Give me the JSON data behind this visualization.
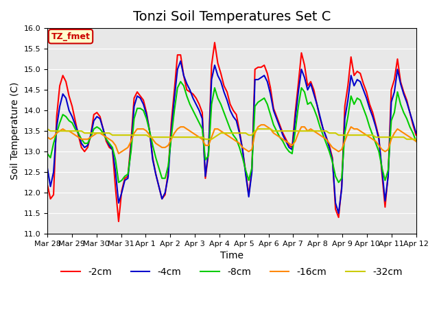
{
  "title": "Tonzi Soil Temperatures Set C",
  "xlabel": "Time",
  "ylabel": "Soil Temperature (C)",
  "ylim": [
    11.0,
    16.0
  ],
  "yticks": [
    11.0,
    11.5,
    12.0,
    12.5,
    13.0,
    13.5,
    14.0,
    14.5,
    15.0,
    15.5,
    16.0
  ],
  "xtick_labels": [
    "Mar 28",
    "Mar 29",
    "Mar 30",
    "Mar 31",
    "Apr 1",
    "Apr 2",
    "Apr 3",
    "Apr 4",
    "Apr 5",
    "Apr 6",
    "Apr 7",
    "Apr 8",
    "Apr 9",
    "Apr 10",
    "Apr 11",
    "Apr 12"
  ],
  "annotation_label": "TZ_fmet",
  "annotation_color": "#cc0000",
  "annotation_bg": "#ffffcc",
  "legend_entries": [
    "-2cm",
    "-4cm",
    "-8cm",
    "-16cm",
    "-32cm"
  ],
  "line_colors": [
    "#ff0000",
    "#0000cc",
    "#00cc00",
    "#ff8800",
    "#cccc00"
  ],
  "line_widths": [
    1.5,
    1.5,
    1.5,
    1.5,
    1.5
  ],
  "bg_color": "#e8e8e8",
  "title_fontsize": 14,
  "axis_fontsize": 10,
  "tick_fontsize": 8,
  "series_2cm": [
    12.2,
    11.85,
    11.95,
    13.85,
    14.6,
    14.85,
    14.7,
    14.35,
    14.1,
    13.75,
    13.4,
    13.1,
    13.0,
    13.1,
    13.4,
    13.9,
    13.95,
    13.85,
    13.55,
    13.25,
    13.1,
    13.05,
    12.1,
    11.3,
    12.05,
    12.35,
    12.4,
    13.25,
    14.3,
    14.45,
    14.35,
    14.25,
    13.95,
    13.5,
    12.85,
    12.45,
    12.15,
    11.85,
    11.95,
    12.5,
    13.7,
    14.5,
    15.35,
    15.35,
    14.85,
    14.5,
    14.45,
    14.4,
    14.3,
    14.15,
    13.95,
    12.35,
    12.95,
    15.1,
    15.65,
    15.15,
    14.9,
    14.6,
    14.45,
    14.15,
    14.0,
    13.9,
    13.5,
    13.05,
    12.5,
    11.95,
    12.55,
    15.0,
    15.05,
    15.05,
    15.1,
    14.9,
    14.55,
    14.05,
    13.85,
    13.65,
    13.45,
    13.3,
    13.15,
    13.1,
    13.95,
    14.65,
    15.4,
    15.1,
    14.6,
    14.7,
    14.5,
    14.15,
    13.8,
    13.55,
    13.35,
    13.15,
    12.85,
    11.6,
    11.4,
    12.15,
    14.1,
    14.6,
    15.3,
    14.85,
    14.95,
    14.9,
    14.65,
    14.45,
    14.15,
    13.95,
    13.65,
    13.35,
    12.45,
    11.65,
    12.45,
    14.5,
    14.75,
    15.25,
    14.7,
    14.45,
    14.25,
    13.95,
    13.65,
    13.4,
    13.15
  ],
  "series_4cm": [
    12.6,
    12.15,
    12.5,
    13.6,
    14.1,
    14.4,
    14.3,
    14.0,
    13.85,
    13.65,
    13.45,
    13.2,
    13.1,
    13.15,
    13.4,
    13.75,
    13.85,
    13.8,
    13.55,
    13.3,
    13.15,
    13.05,
    12.5,
    11.75,
    12.0,
    12.3,
    12.35,
    13.1,
    14.1,
    14.35,
    14.3,
    14.15,
    13.9,
    13.5,
    12.8,
    12.45,
    12.15,
    11.85,
    12.0,
    12.4,
    13.5,
    14.3,
    15.0,
    15.2,
    14.85,
    14.65,
    14.5,
    14.3,
    14.15,
    14.0,
    13.8,
    12.4,
    13.0,
    14.75,
    15.1,
    14.85,
    14.7,
    14.45,
    14.25,
    14.0,
    13.85,
    13.75,
    13.45,
    13.05,
    12.45,
    11.9,
    12.5,
    14.75,
    14.75,
    14.8,
    14.85,
    14.7,
    14.4,
    14.0,
    13.8,
    13.6,
    13.4,
    13.25,
    13.1,
    13.05,
    13.8,
    14.45,
    15.0,
    14.8,
    14.5,
    14.65,
    14.4,
    14.15,
    13.85,
    13.55,
    13.35,
    13.1,
    12.8,
    11.75,
    11.5,
    12.1,
    13.8,
    14.25,
    14.85,
    14.6,
    14.75,
    14.7,
    14.5,
    14.3,
    14.05,
    13.85,
    13.6,
    13.3,
    12.55,
    11.8,
    12.4,
    14.2,
    14.45,
    15.0,
    14.65,
    14.4,
    14.2,
    13.95,
    13.7,
    13.45,
    13.2
  ],
  "series_8cm": [
    12.95,
    12.85,
    13.2,
    13.45,
    13.7,
    13.9,
    13.85,
    13.75,
    13.7,
    13.55,
    13.45,
    13.3,
    13.2,
    13.2,
    13.35,
    13.55,
    13.6,
    13.55,
    13.45,
    13.3,
    13.2,
    13.1,
    12.8,
    12.25,
    12.3,
    12.4,
    12.45,
    13.0,
    13.8,
    14.05,
    14.05,
    14.0,
    13.8,
    13.5,
    13.15,
    12.85,
    12.6,
    12.35,
    12.35,
    12.65,
    13.35,
    14.0,
    14.55,
    14.7,
    14.6,
    14.35,
    14.15,
    14.0,
    13.85,
    13.7,
    13.55,
    12.8,
    12.9,
    14.15,
    14.55,
    14.3,
    14.15,
    13.95,
    13.75,
    13.55,
    13.4,
    13.3,
    13.1,
    12.85,
    12.55,
    12.3,
    12.6,
    14.1,
    14.2,
    14.25,
    14.3,
    14.15,
    13.9,
    13.65,
    13.5,
    13.35,
    13.25,
    13.1,
    13.0,
    12.95,
    13.5,
    14.1,
    14.55,
    14.45,
    14.15,
    14.2,
    14.05,
    13.85,
    13.6,
    13.4,
    13.2,
    13.0,
    12.75,
    12.4,
    12.25,
    12.35,
    13.45,
    13.85,
    14.35,
    14.15,
    14.3,
    14.25,
    14.05,
    13.85,
    13.6,
    13.4,
    13.2,
    13.0,
    12.6,
    12.3,
    12.55,
    13.75,
    13.95,
    14.45,
    14.15,
    13.95,
    13.8,
    13.6,
    13.45,
    13.25,
    13.05
  ],
  "series_16cm": [
    13.35,
    13.3,
    13.35,
    13.45,
    13.5,
    13.55,
    13.5,
    13.5,
    13.45,
    13.4,
    13.35,
    13.3,
    13.3,
    13.3,
    13.35,
    13.4,
    13.45,
    13.45,
    13.4,
    13.35,
    13.3,
    13.25,
    13.15,
    12.95,
    13.0,
    13.05,
    13.1,
    13.25,
    13.45,
    13.55,
    13.55,
    13.55,
    13.5,
    13.4,
    13.3,
    13.2,
    13.15,
    13.1,
    13.1,
    13.15,
    13.3,
    13.45,
    13.55,
    13.6,
    13.6,
    13.55,
    13.5,
    13.45,
    13.4,
    13.35,
    13.3,
    13.15,
    13.15,
    13.35,
    13.55,
    13.55,
    13.5,
    13.45,
    13.4,
    13.35,
    13.3,
    13.25,
    13.2,
    13.1,
    13.05,
    13.0,
    13.05,
    13.45,
    13.6,
    13.65,
    13.65,
    13.6,
    13.55,
    13.45,
    13.4,
    13.35,
    13.3,
    13.25,
    13.2,
    13.15,
    13.25,
    13.45,
    13.6,
    13.6,
    13.5,
    13.55,
    13.5,
    13.45,
    13.4,
    13.35,
    13.3,
    13.2,
    13.1,
    13.05,
    13.0,
    13.05,
    13.25,
    13.45,
    13.6,
    13.55,
    13.55,
    13.5,
    13.45,
    13.4,
    13.35,
    13.3,
    13.25,
    13.15,
    13.05,
    13.0,
    13.05,
    13.3,
    13.45,
    13.55,
    13.5,
    13.45,
    13.4,
    13.35,
    13.3,
    13.25,
    13.15
  ],
  "series_32cm": [
    13.55,
    13.5,
    13.5,
    13.5,
    13.5,
    13.5,
    13.5,
    13.5,
    13.5,
    13.5,
    13.5,
    13.5,
    13.45,
    13.45,
    13.45,
    13.45,
    13.45,
    13.45,
    13.45,
    13.45,
    13.45,
    13.4,
    13.4,
    13.4,
    13.4,
    13.4,
    13.4,
    13.4,
    13.4,
    13.4,
    13.4,
    13.4,
    13.4,
    13.35,
    13.35,
    13.35,
    13.35,
    13.35,
    13.35,
    13.35,
    13.35,
    13.35,
    13.35,
    13.35,
    13.35,
    13.35,
    13.35,
    13.35,
    13.35,
    13.35,
    13.35,
    13.3,
    13.3,
    13.3,
    13.35,
    13.4,
    13.45,
    13.45,
    13.45,
    13.45,
    13.45,
    13.45,
    13.45,
    13.45,
    13.45,
    13.4,
    13.4,
    13.5,
    13.55,
    13.55,
    13.55,
    13.55,
    13.55,
    13.5,
    13.5,
    13.5,
    13.5,
    13.5,
    13.5,
    13.5,
    13.5,
    13.5,
    13.5,
    13.5,
    13.5,
    13.5,
    13.5,
    13.5,
    13.5,
    13.5,
    13.5,
    13.45,
    13.45,
    13.45,
    13.4,
    13.4,
    13.4,
    13.4,
    13.4,
    13.4,
    13.4,
    13.4,
    13.4,
    13.4,
    13.4,
    13.4,
    13.35,
    13.35,
    13.35,
    13.35,
    13.35,
    13.35,
    13.35,
    13.35,
    13.35,
    13.35,
    13.3,
    13.3,
    13.3,
    13.3
  ]
}
